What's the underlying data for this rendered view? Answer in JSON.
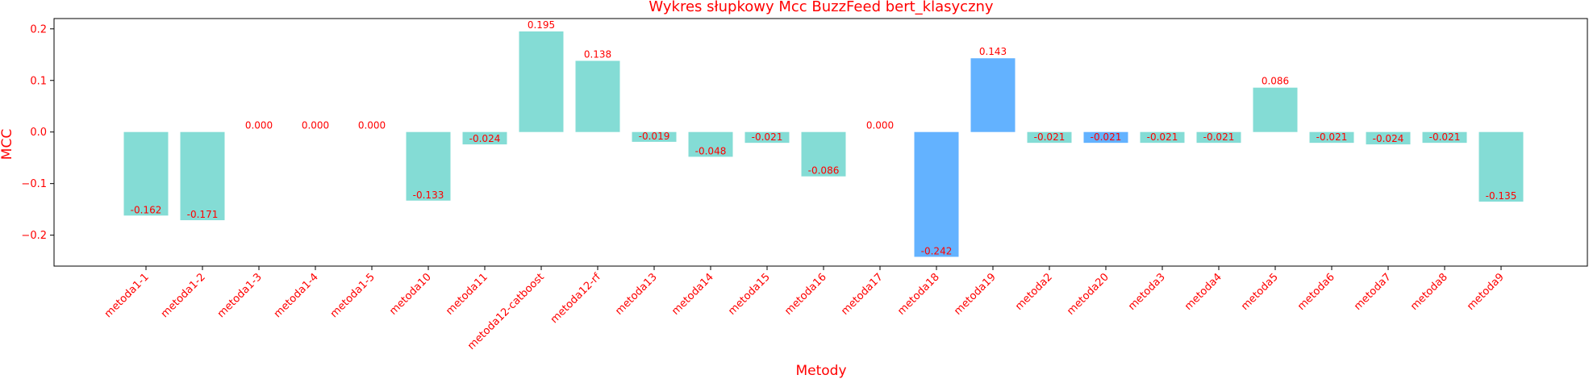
{
  "chart_data": {
    "type": "bar",
    "title": "Wykres słupkowy Mcc BuzzFeed bert_klasyczny",
    "xlabel": "Metody",
    "ylabel": "MCC",
    "ylim": [
      -0.26,
      0.22
    ],
    "yticks": [
      -0.2,
      -0.1,
      0.0,
      0.1,
      0.2
    ],
    "ytick_labels": [
      "−0.2",
      "−0.1",
      "0.0",
      "0.1",
      "0.2"
    ],
    "grid": false,
    "categories": [
      "metoda1-1",
      "metoda1-2",
      "metoda1-3",
      "metoda1-4",
      "metoda1-5",
      "metoda10",
      "metoda11",
      "metoda12-catboost",
      "metoda12-rf",
      "metoda13",
      "metoda14",
      "metoda15",
      "metoda16",
      "metoda17",
      "metoda18",
      "metoda19",
      "metoda2",
      "metoda20",
      "metoda3",
      "metoda4",
      "metoda5",
      "metoda6",
      "metoda7",
      "metoda8",
      "metoda9"
    ],
    "values": [
      -0.162,
      -0.171,
      0.0,
      0.0,
      0.0,
      -0.133,
      -0.024,
      0.195,
      0.138,
      -0.019,
      -0.048,
      -0.021,
      -0.086,
      0.0,
      -0.242,
      0.143,
      -0.021,
      -0.021,
      -0.021,
      -0.021,
      0.086,
      -0.021,
      -0.024,
      -0.021,
      -0.135
    ],
    "value_labels": [
      "-0.162",
      "-0.171",
      "0.000",
      "0.000",
      "0.000",
      "-0.133",
      "-0.024",
      "0.195",
      "0.138",
      "-0.019",
      "-0.048",
      "-0.021",
      "-0.086",
      "0.000",
      "-0.242",
      "0.143",
      "-0.021",
      "-0.021",
      "-0.021",
      "-0.021",
      "0.086",
      "-0.021",
      "-0.024",
      "-0.021",
      "-0.135"
    ],
    "bar_colors": [
      "#84dcd5",
      "#84dcd5",
      "#84dcd5",
      "#84dcd5",
      "#84dcd5",
      "#84dcd5",
      "#84dcd5",
      "#84dcd5",
      "#84dcd5",
      "#84dcd5",
      "#84dcd5",
      "#84dcd5",
      "#84dcd5",
      "#84dcd5",
      "#63b2ff",
      "#63b2ff",
      "#84dcd5",
      "#63b2ff",
      "#84dcd5",
      "#84dcd5",
      "#84dcd5",
      "#84dcd5",
      "#84dcd5",
      "#84dcd5",
      "#84dcd5"
    ],
    "text_color": "#ff0000"
  }
}
